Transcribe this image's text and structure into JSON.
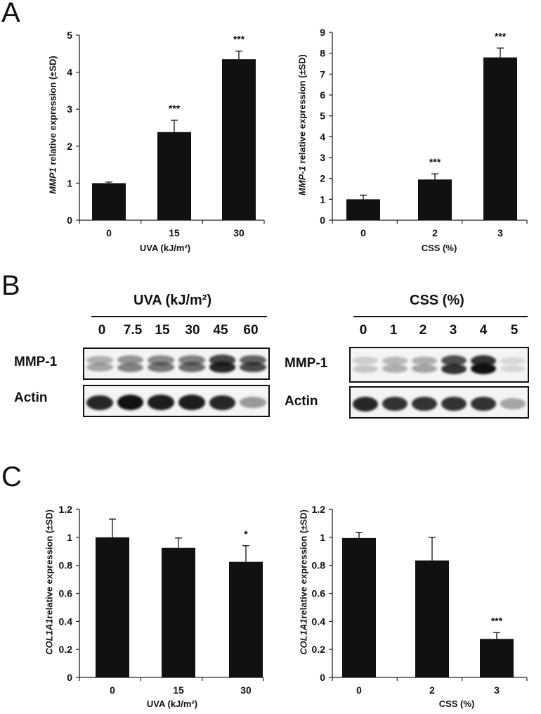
{
  "panels": {
    "A": "A",
    "B": "B",
    "C": "C"
  },
  "chart_data": [
    {
      "id": "A1",
      "type": "bar",
      "ylabel_gene": "MMP1",
      "ylabel_rest": " relative expression (±SD)",
      "xlabel": "UVA (kJ/m²)",
      "categories": [
        "0",
        "15",
        "30"
      ],
      "values": [
        1.0,
        2.38,
        4.35
      ],
      "errors": [
        0.03,
        0.32,
        0.22
      ],
      "significance": [
        "",
        "***",
        "***"
      ],
      "ylim": [
        0,
        5
      ],
      "yticks": [
        0,
        1,
        2,
        3,
        4,
        5
      ],
      "ytick_labels": [
        "0",
        "1",
        "2",
        "3",
        "4",
        "5"
      ]
    },
    {
      "id": "A2",
      "type": "bar",
      "ylabel_gene": "MMP-1",
      "ylabel_rest": " relative expression (±SD)",
      "xlabel": "CSS (%)",
      "categories": [
        "0",
        "2",
        "3"
      ],
      "values": [
        1.0,
        1.95,
        7.8
      ],
      "errors": [
        0.2,
        0.27,
        0.45
      ],
      "significance": [
        "",
        "***",
        "***"
      ],
      "ylim": [
        0,
        9
      ],
      "yticks": [
        0,
        1,
        2,
        3,
        4,
        5,
        6,
        7,
        8,
        9
      ],
      "ytick_labels": [
        "0",
        "1",
        "2",
        "3",
        "4",
        "5",
        "6",
        "7",
        "8",
        "9"
      ]
    },
    {
      "id": "C1",
      "type": "bar",
      "ylabel_gene": "COL1A1",
      "ylabel_rest": "relative expression (±SD)",
      "xlabel": "UVA (kJ/m²)",
      "categories": [
        "0",
        "15",
        "30"
      ],
      "values": [
        1.0,
        0.925,
        0.825
      ],
      "errors": [
        0.13,
        0.07,
        0.115
      ],
      "significance": [
        "",
        "",
        "*"
      ],
      "ylim": [
        0,
        1.2
      ],
      "yticks": [
        0,
        0.2,
        0.4,
        0.6,
        0.8,
        1.0,
        1.2
      ],
      "ytick_labels": [
        "0",
        "0.2",
        "0.4",
        "0.6",
        "0.8",
        "1",
        "1.2"
      ]
    },
    {
      "id": "C2",
      "type": "bar",
      "ylabel_gene": "COL1A1",
      "ylabel_rest": "relative expression (±SD)",
      "xlabel": "CSS (%)",
      "categories": [
        "0",
        "2",
        "3"
      ],
      "values": [
        0.995,
        0.835,
        0.275
      ],
      "errors": [
        0.04,
        0.165,
        0.045
      ],
      "significance": [
        "",
        "",
        "***"
      ],
      "ylim": [
        0,
        1.2
      ],
      "yticks": [
        0,
        0.2,
        0.4,
        0.6,
        0.8,
        1.0,
        1.2
      ],
      "ytick_labels": [
        "0",
        "0.2",
        "0.4",
        "0.6",
        "0.8",
        "1",
        "1.2"
      ]
    }
  ],
  "blots": {
    "uva": {
      "title": "UVA (kJ/m²)",
      "lanes": [
        "0",
        "7.5",
        "15",
        "30",
        "45",
        "60"
      ],
      "row1": "MMP-1",
      "row2": "Actin",
      "mmp_intensity": [
        0.35,
        0.5,
        0.55,
        0.6,
        0.9,
        0.75
      ],
      "actin_intensity": [
        0.9,
        1.0,
        0.95,
        0.95,
        0.9,
        0.4
      ]
    },
    "css": {
      "title": "CSS (%)",
      "lanes": [
        "0",
        "1",
        "2",
        "3",
        "4",
        "5"
      ],
      "row1": "MMP-1",
      "row2": "Actin",
      "mmp_intensity": [
        0.2,
        0.3,
        0.35,
        0.85,
        1.0,
        0.1
      ],
      "actin_intensity": [
        0.9,
        0.85,
        0.85,
        0.85,
        0.85,
        0.35
      ]
    }
  }
}
